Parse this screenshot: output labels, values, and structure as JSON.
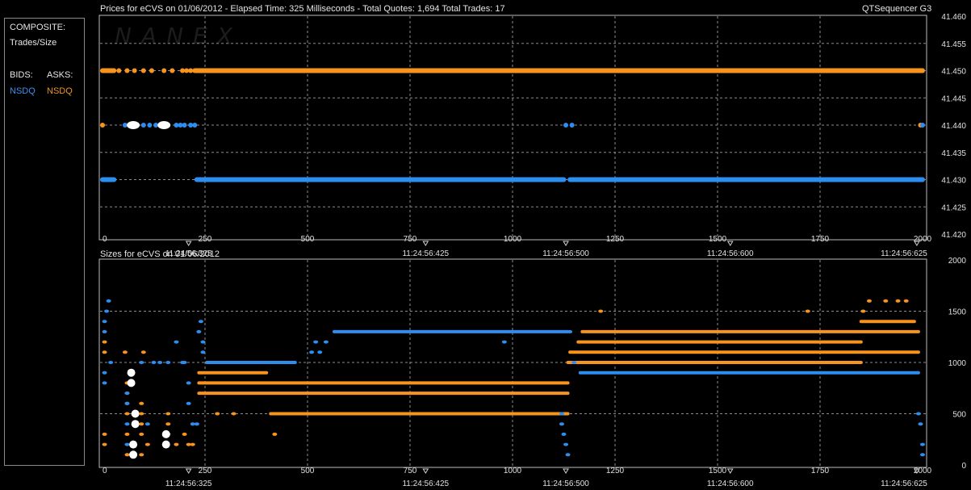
{
  "sidebar": {
    "composite_label": "COMPOSITE:",
    "trades_size_label": "Trades/Size",
    "bids_label": "BIDS:",
    "asks_label": "ASKS:",
    "bid_exchange": "NSDQ",
    "ask_exchange": "NSDQ"
  },
  "header": {
    "prices_title": "Prices for  eCVS  on  01/06/2012  -  Elapsed Time: 325 Milliseconds  -  Total Quotes: 1,694  Total Trades: 17",
    "app_name": "QTSequencer G3",
    "sizes_title": "Sizes for  eCVS  on  01/06/2012"
  },
  "watermark": "NANEX",
  "colors": {
    "bid": "#2e8ef0",
    "ask": "#f7941d",
    "trade": "#ffffff",
    "grid": "#8c8c8c",
    "frame": "#bdbdbd"
  },
  "chart_data": [
    {
      "type": "scatter",
      "title": "Prices for  eCVS  on  01/06/2012",
      "x_ticks": [
        "0",
        "250",
        "500",
        "750",
        "1000",
        "1250",
        "1500",
        "1750",
        "2000"
      ],
      "time_labels": [
        {
          "x": 210,
          "label": "11:24:56:325"
        },
        {
          "x": 788,
          "label": "11:24:56:425"
        },
        {
          "x": 1130,
          "label": "11:24:56:500"
        },
        {
          "x": 1531,
          "label": "11:24:56:600"
        },
        {
          "x": 1986,
          "label": "11:24:56:625"
        }
      ],
      "xlim": [
        0,
        2000
      ],
      "ylim": [
        41.42,
        41.46
      ],
      "y_ticks": [
        "41.420",
        "41.425",
        "41.430",
        "41.435",
        "41.440",
        "41.445",
        "41.450",
        "41.455",
        "41.460"
      ],
      "series": [
        {
          "name": "NSDQ",
          "side": "ask",
          "segments": [
            [
              0,
              28,
              41.45
            ],
            [
              225,
              2000,
              41.45
            ]
          ],
          "points": [
            [
              40,
              41.45
            ],
            [
              60,
              41.45
            ],
            [
              78,
              41.45
            ],
            [
              100,
              41.45
            ],
            [
              120,
              41.45
            ],
            [
              150,
              41.45
            ],
            [
              170,
              41.45
            ],
            [
              195,
              41.45
            ],
            [
              205,
              41.45
            ],
            [
              215,
              41.45
            ],
            [
              0,
              41.44
            ],
            [
              1995,
              41.44
            ]
          ]
        },
        {
          "name": "NSDQ",
          "side": "bid",
          "segments": [
            [
              0,
              28,
              41.43
            ],
            [
              230,
              1125,
              41.43
            ],
            [
              1140,
              2000,
              41.43
            ]
          ],
          "points": [
            [
              55,
              41.44
            ],
            [
              100,
              41.44
            ],
            [
              115,
              41.44
            ],
            [
              130,
              41.44
            ],
            [
              145,
              41.44
            ],
            [
              180,
              41.44
            ],
            [
              190,
              41.44
            ],
            [
              200,
              41.44
            ],
            [
              215,
              41.44
            ],
            [
              225,
              41.44
            ],
            [
              1130,
              41.44
            ],
            [
              1145,
              41.44
            ],
            [
              2000,
              41.44
            ]
          ]
        },
        {
          "side": "trade",
          "points": [
            [
              75,
              41.44
            ],
            [
              150,
              41.44
            ]
          ]
        }
      ]
    },
    {
      "type": "scatter",
      "title": "Sizes for  eCVS  on  01/06/2012",
      "x_ticks": [
        "0",
        "250",
        "500",
        "750",
        "1000",
        "1250",
        "1500",
        "1750",
        "2000"
      ],
      "time_labels": [
        {
          "x": 210,
          "label": "11:24:56:325"
        },
        {
          "x": 788,
          "label": "11:24:56:425"
        },
        {
          "x": 1130,
          "label": "11:24:56:500"
        },
        {
          "x": 1531,
          "label": "11:24:56:600"
        },
        {
          "x": 1986,
          "label": "11:24:56:625"
        }
      ],
      "xlim": [
        0,
        2000
      ],
      "ylim": [
        0,
        2000
      ],
      "y_ticks": [
        "0",
        "500",
        "1000",
        "1500",
        "2000"
      ],
      "series": [
        {
          "name": "NSDQ",
          "side": "ask",
          "segments": [
            [
              255,
              400,
              1000
            ],
            [
              235,
              400,
              900
            ],
            [
              235,
              1135,
              800
            ],
            [
              235,
              1135,
              700
            ],
            [
              410,
              1135,
              500
            ],
            [
              1135,
              1850,
              1000
            ],
            [
              1160,
              1850,
              1200
            ],
            [
              1170,
              1990,
              1300
            ],
            [
              1140,
              1990,
              1100
            ],
            [
              1850,
              1980,
              1400
            ]
          ],
          "points": [
            [
              5,
              1200
            ],
            [
              5,
              1100
            ],
            [
              5,
              300
            ],
            [
              5,
              200
            ],
            [
              55,
              1100
            ],
            [
              60,
              800
            ],
            [
              60,
              700
            ],
            [
              60,
              600
            ],
            [
              60,
              500
            ],
            [
              60,
              300
            ],
            [
              60,
              100
            ],
            [
              95,
              600
            ],
            [
              95,
              500
            ],
            [
              95,
              400
            ],
            [
              95,
              300
            ],
            [
              95,
              100
            ],
            [
              100,
              1100
            ],
            [
              110,
              200
            ],
            [
              160,
              500
            ],
            [
              160,
              400
            ],
            [
              160,
              300
            ],
            [
              180,
              200
            ],
            [
              200,
              300
            ],
            [
              210,
              200
            ],
            [
              220,
              200
            ],
            [
              280,
              500
            ],
            [
              320,
              500
            ],
            [
              420,
              300
            ],
            [
              1215,
              1500
            ],
            [
              1720,
              1500
            ],
            [
              1855,
              1500
            ],
            [
              1870,
              1600
            ],
            [
              1910,
              1600
            ],
            [
              1940,
              1600
            ],
            [
              1960,
              1600
            ]
          ]
        },
        {
          "name": "NSDQ",
          "side": "bid",
          "segments": [
            [
              255,
              470,
              1000
            ],
            [
              565,
              1135,
              1300
            ],
            [
              1165,
              1990,
              900
            ]
          ],
          "points": [
            [
              10,
              1500
            ],
            [
              15,
              1600
            ],
            [
              5,
              1400
            ],
            [
              5,
              1300
            ],
            [
              5,
              900
            ],
            [
              5,
              800
            ],
            [
              20,
              1000
            ],
            [
              60,
              700
            ],
            [
              60,
              600
            ],
            [
              60,
              400
            ],
            [
              60,
              200
            ],
            [
              95,
              1000
            ],
            [
              110,
              400
            ],
            [
              125,
              1000
            ],
            [
              140,
              1000
            ],
            [
              160,
              1000
            ],
            [
              180,
              1200
            ],
            [
              195,
              1000
            ],
            [
              200,
              1000
            ],
            [
              210,
              800
            ],
            [
              210,
              600
            ],
            [
              220,
              400
            ],
            [
              230,
              400
            ],
            [
              235,
              1300
            ],
            [
              240,
              1400
            ],
            [
              245,
              1200
            ],
            [
              245,
              1100
            ],
            [
              510,
              1100
            ],
            [
              520,
              1200
            ],
            [
              530,
              1100
            ],
            [
              545,
              1200
            ],
            [
              980,
              1200
            ],
            [
              1120,
              500
            ],
            [
              1120,
              400
            ],
            [
              1125,
              300
            ],
            [
              1130,
              200
            ],
            [
              1135,
              100
            ],
            [
              1140,
              1300
            ],
            [
              1150,
              1000
            ],
            [
              1990,
              500
            ],
            [
              1995,
              400
            ],
            [
              2000,
              200
            ],
            [
              2000,
              100
            ]
          ]
        },
        {
          "side": "trade",
          "points": [
            [
              70,
              900
            ],
            [
              70,
              800
            ],
            [
              80,
              500
            ],
            [
              80,
              400
            ],
            [
              75,
              200
            ],
            [
              75,
              100
            ],
            [
              155,
              300
            ],
            [
              155,
              200
            ]
          ]
        }
      ]
    }
  ]
}
